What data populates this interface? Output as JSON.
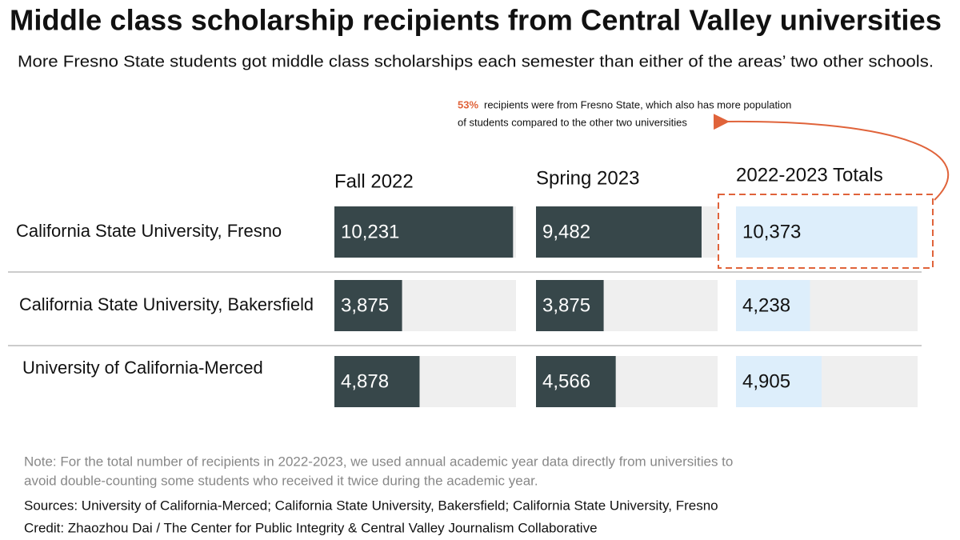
{
  "chart_data": {
    "type": "bar",
    "title": "Middle class scholarship recipients from Central Valley universities",
    "subtitle": "More Fresno State students got middle class scholarships each semester than either of the areas’ two other schools.",
    "annotation": {
      "highlight": "53%",
      "lines": [
        "recipients were from Fresno State, which also has more population",
        "of students compared to the other two universities"
      ]
    },
    "categories": [
      "California State University, Fresno",
      "California State University, Bakersfield",
      "University of California-Merced"
    ],
    "series": [
      {
        "name": "Fall 2022",
        "color": "#37474a",
        "label_color": "#ffffff",
        "values": [
          10231,
          3875,
          4878
        ],
        "value_labels": [
          "10,231",
          "3,875",
          "4,878"
        ]
      },
      {
        "name": "Spring 2023",
        "color": "#37474a",
        "label_color": "#ffffff",
        "values": [
          9482,
          3875,
          4566
        ],
        "value_labels": [
          "9,482",
          "3,875",
          "4,566"
        ]
      },
      {
        "name": "2022-2023 Totals",
        "color": "#ddeefb",
        "label_color": "#111111",
        "values": [
          10373,
          4238,
          4905
        ],
        "value_labels": [
          "10,373",
          "4,238",
          "4,905"
        ]
      }
    ],
    "xlim": [
      0,
      10400
    ],
    "note": [
      "Note: For the total number of recipients in 2022-2023, we used annual academic year data directly from universities to",
      "avoid double-counting some students who received it twice during the academic year."
    ],
    "sources": "Sources: University of California-Merced; California State University, Bakersfield; California State University, Fresno",
    "credit": "Credit: Zhaozhou Dai / The Center for Public Integrity & Central Valley Journalism Collaborative"
  }
}
